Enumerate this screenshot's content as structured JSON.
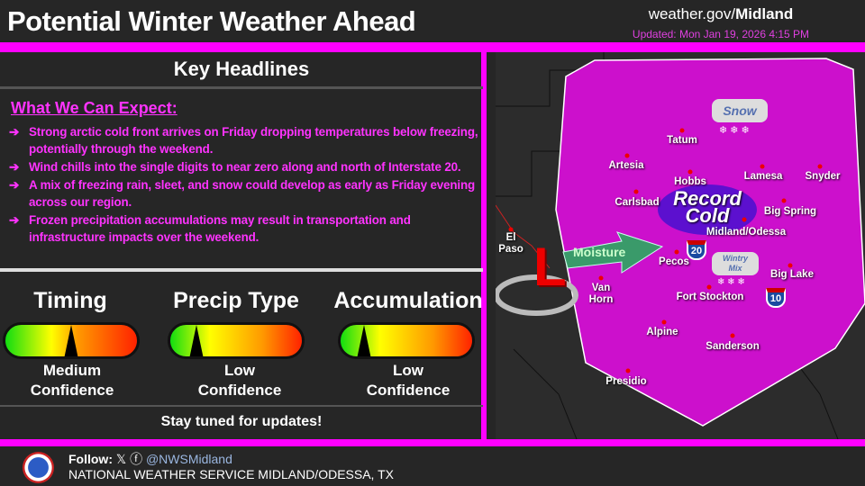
{
  "header": {
    "title": "Potential Winter Weather Ahead",
    "site_prefix": "weather.gov/",
    "site_office": "Midland",
    "updated": "Updated: Mon Jan 19, 2026 4:15 PM"
  },
  "headlines": {
    "title": "Key Headlines",
    "subtitle": "What We Can Expect:",
    "bullet_icon": "arrow-right-icon",
    "items": [
      "Strong arctic cold front arrives on Friday dropping temperatures below freezing, potentially through the weekend.",
      "Wind chills into the single digits to near zero along and north of Interstate 20.",
      "A mix of freezing rain, sleet, and snow could develop as early as Friday evening across our region.",
      "Frozen precipitation accumulations may result in transportation and infrastructure impacts over the weekend."
    ]
  },
  "gauges": [
    {
      "title": "Timing",
      "level": "Medium",
      "confidence": "Confidence",
      "pointer_fraction": 0.5
    },
    {
      "title": "Precip Type",
      "level": "Low",
      "confidence": "Confidence",
      "pointer_fraction": 0.2
    },
    {
      "title": "Accumulation",
      "level": "Low",
      "confidence": "Confidence",
      "pointer_fraction": 0.18
    }
  ],
  "stay_tuned": "Stay tuned for updates!",
  "map": {
    "highlight_color": "#cc00cc",
    "labels": {
      "snow": "Snow",
      "record1": "Record",
      "record2": "Cold",
      "moisture": "Moisture",
      "wintry1": "Wintry",
      "wintry2": "Mix",
      "low": "L"
    },
    "interstates": [
      "20",
      "10"
    ],
    "cities": [
      "Tatum",
      "Artesia",
      "Hobbs",
      "Lamesa",
      "Snyder",
      "Carlsbad",
      "Big Spring",
      "Midland/Odessa",
      "El Paso",
      "Pecos",
      "Van Horn",
      "Fort Stockton",
      "Big Lake",
      "Alpine",
      "Sanderson",
      "Presidio"
    ]
  },
  "footer": {
    "follow": "Follow:",
    "handle": "@NWSMidland",
    "office": "NATIONAL WEATHER SERVICE MIDLAND/ODESSA, TX"
  }
}
